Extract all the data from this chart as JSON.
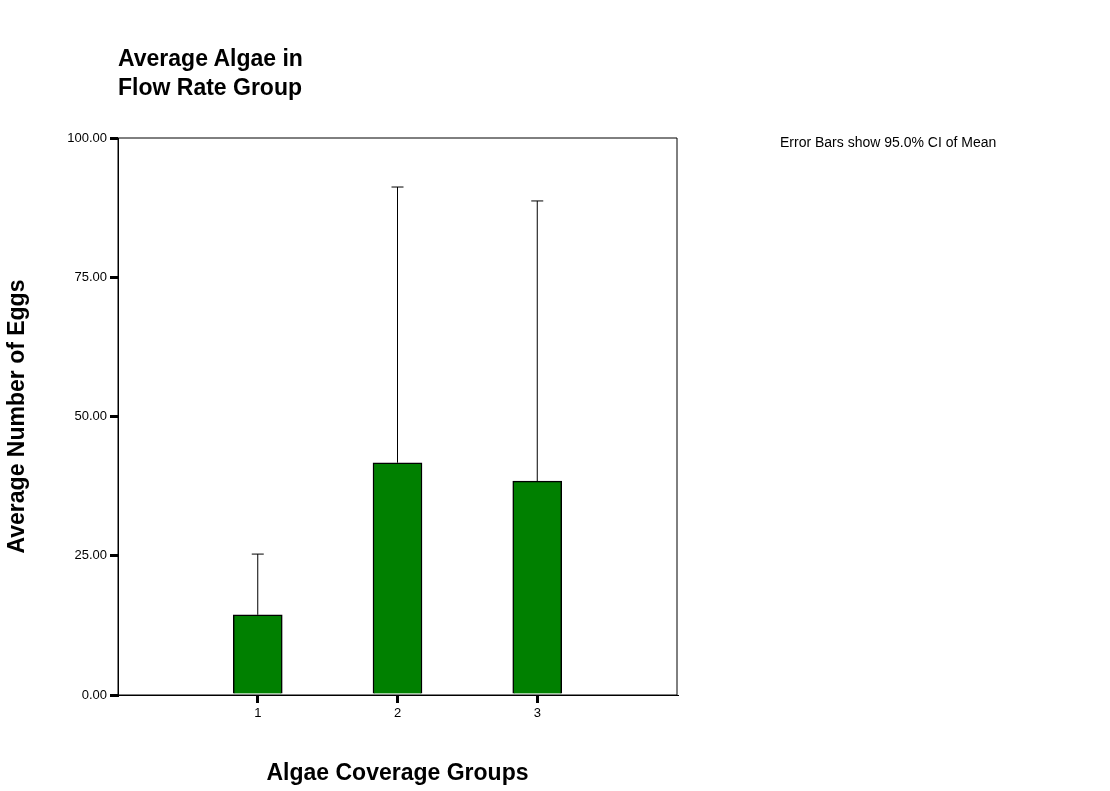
{
  "chart_data": {
    "type": "bar",
    "title": "Average Algae in\nFlow Rate Group",
    "xlabel": "Algae Coverage Groups",
    "ylabel": "Average Number of Eggs",
    "categories": [
      "1",
      "2",
      "3"
    ],
    "values": [
      14.4,
      41.7,
      38.4
    ],
    "errors": [
      [
        14.4,
        25.3
      ],
      [
        41.7,
        91.2
      ],
      [
        38.4,
        88.7
      ]
    ],
    "color": "#008000",
    "ylim": [
      0,
      100
    ],
    "yticks": [
      {
        "value": 0,
        "label": "0.00"
      },
      {
        "value": 25,
        "label": "25.00"
      },
      {
        "value": 50,
        "label": "50.00"
      },
      {
        "value": 75,
        "label": "75.00"
      },
      {
        "value": 100,
        "label": "100.00"
      }
    ],
    "grid": false,
    "legend": false,
    "annotations": [
      "Error Bars show 95.0% CI of Mean"
    ]
  }
}
